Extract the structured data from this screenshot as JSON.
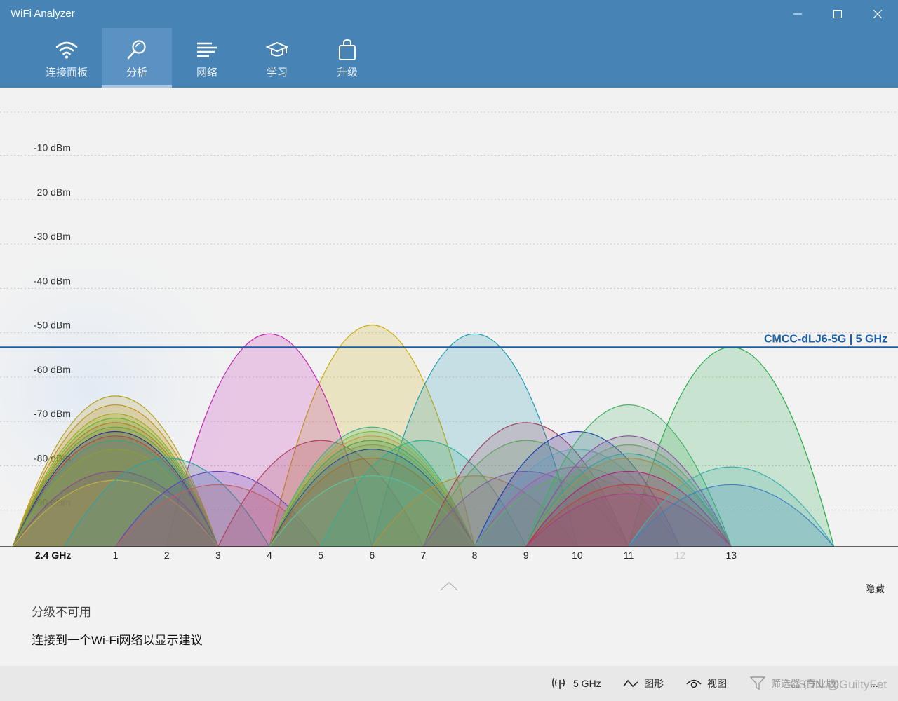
{
  "app": {
    "title": "WiFi Analyzer"
  },
  "tabs": [
    {
      "label": "连接面板",
      "icon": "wifi-icon",
      "active": false
    },
    {
      "label": "分析",
      "icon": "analyze-icon",
      "active": true
    },
    {
      "label": "网络",
      "icon": "network-list-icon",
      "active": false
    },
    {
      "label": "学习",
      "icon": "graduation-cap-icon",
      "active": false
    },
    {
      "label": "升级",
      "icon": "shopping-bag-icon",
      "active": false
    }
  ],
  "chart_data": {
    "type": "area",
    "band_label": "2.4 GHz",
    "y_tick_labels": [
      "-10 dBm",
      "-20 dBm",
      "-30 dBm",
      "-40 dBm",
      "-50 dBm",
      "-60 dBm",
      "-70 dBm",
      "-80 dBm",
      "-90 dBm"
    ],
    "ylim": [
      -100,
      -2
    ],
    "channels": [
      {
        "label": "1",
        "value": 1,
        "dim": false
      },
      {
        "label": "2",
        "value": 2,
        "dim": false
      },
      {
        "label": "3",
        "value": 3,
        "dim": false
      },
      {
        "label": "4",
        "value": 4,
        "dim": false
      },
      {
        "label": "5",
        "value": 5,
        "dim": false
      },
      {
        "label": "6",
        "value": 6,
        "dim": false
      },
      {
        "label": "7",
        "value": 7,
        "dim": false
      },
      {
        "label": "8",
        "value": 8,
        "dim": false
      },
      {
        "label": "9",
        "value": 9,
        "dim": false
      },
      {
        "label": "10",
        "value": 10,
        "dim": false
      },
      {
        "label": "11",
        "value": 11,
        "dim": false
      },
      {
        "label": "12",
        "value": 12,
        "dim": true
      },
      {
        "label": "13",
        "value": 13,
        "dim": false
      }
    ],
    "xlim": [
      -1.25,
      16.25
    ],
    "reference_line": {
      "label": "CMCC-dLJ6-5G | 5 GHz",
      "value": -55,
      "color": "#1a5fa8"
    },
    "series": [
      {
        "channel": 6,
        "peak": -50,
        "color": "#c8a800"
      },
      {
        "channel": 4,
        "peak": -52,
        "color": "#c020b0"
      },
      {
        "channel": 8,
        "peak": -52,
        "color": "#1a98b0"
      },
      {
        "channel": 13,
        "peak": -55,
        "color": "#22aa44"
      },
      {
        "channel": 1,
        "peak": -66,
        "color": "#b8a020"
      },
      {
        "channel": 1,
        "peak": -68,
        "color": "#c09020"
      },
      {
        "channel": 1,
        "peak": -70,
        "color": "#9aaa20"
      },
      {
        "channel": 1,
        "peak": -71,
        "color": "#70b030"
      },
      {
        "channel": 1,
        "peak": -72,
        "color": "#a88030"
      },
      {
        "channel": 1,
        "peak": -73,
        "color": "#60a050"
      },
      {
        "channel": 1,
        "peak": -74,
        "color": "#303090"
      },
      {
        "channel": 1,
        "peak": -75,
        "color": "#a05050"
      },
      {
        "channel": 1,
        "peak": -76,
        "color": "#40a080"
      },
      {
        "channel": 1,
        "peak": -78,
        "color": "#8aa030"
      },
      {
        "channel": 1,
        "peak": -83,
        "color": "#805080"
      },
      {
        "channel": 1,
        "peak": -85,
        "color": "#c0b040"
      },
      {
        "channel": 2,
        "peak": -80,
        "color": "#30a0a0"
      },
      {
        "channel": 3,
        "peak": -83,
        "color": "#6040c0"
      },
      {
        "channel": 3,
        "peak": -86,
        "color": "#c06060"
      },
      {
        "channel": 5,
        "peak": -76,
        "color": "#b04060"
      },
      {
        "channel": 6,
        "peak": -73,
        "color": "#40b080"
      },
      {
        "channel": 6,
        "peak": -74,
        "color": "#80c040"
      },
      {
        "channel": 6,
        "peak": -75,
        "color": "#c0a040"
      },
      {
        "channel": 6,
        "peak": -76,
        "color": "#50a050"
      },
      {
        "channel": 6,
        "peak": -77,
        "color": "#80a060"
      },
      {
        "channel": 6,
        "peak": -78,
        "color": "#305090"
      },
      {
        "channel": 6,
        "peak": -80,
        "color": "#a07030"
      },
      {
        "channel": 6,
        "peak": -84,
        "color": "#60c0a0"
      },
      {
        "channel": 7,
        "peak": -76,
        "color": "#30b090"
      },
      {
        "channel": 8,
        "peak": -84,
        "color": "#b09040"
      },
      {
        "channel": 9,
        "peak": -72,
        "color": "#a04060"
      },
      {
        "channel": 9,
        "peak": -76,
        "color": "#60a060"
      },
      {
        "channel": 9,
        "peak": -83,
        "color": "#8060a0"
      },
      {
        "channel": 10,
        "peak": -74,
        "color": "#2040b0"
      },
      {
        "channel": 10,
        "peak": -78,
        "color": "#60a0c0"
      },
      {
        "channel": 10,
        "peak": -82,
        "color": "#a060a0"
      },
      {
        "channel": 10,
        "peak": -84,
        "color": "#60b060"
      },
      {
        "channel": 11,
        "peak": -68,
        "color": "#40b060"
      },
      {
        "channel": 11,
        "peak": -75,
        "color": "#9050a0"
      },
      {
        "channel": 11,
        "peak": -77,
        "color": "#70a070"
      },
      {
        "channel": 11,
        "peak": -79,
        "color": "#40a090"
      },
      {
        "channel": 11,
        "peak": -80,
        "color": "#a09050"
      },
      {
        "channel": 11,
        "peak": -83,
        "color": "#b02080"
      },
      {
        "channel": 11,
        "peak": -86,
        "color": "#c04040"
      },
      {
        "channel": 11,
        "peak": -88,
        "color": "#a04080"
      },
      {
        "channel": 13,
        "peak": -82,
        "color": "#40b0b0"
      },
      {
        "channel": 13,
        "peak": -86,
        "color": "#4080c0"
      }
    ]
  },
  "info": {
    "collapse_icon": "chevron-up-icon",
    "hide_label": "隐藏",
    "rating_text": "分级不可用",
    "connect_text": "连接到一个Wi-Fi网络以显示建议"
  },
  "command_bar": {
    "band_label": "5 GHz",
    "graph_label": "图形",
    "view_label": "视图",
    "filter_label": "筛选器 (专业版)",
    "more_label": "..."
  },
  "watermark": "CSDN @GuiltyFet"
}
